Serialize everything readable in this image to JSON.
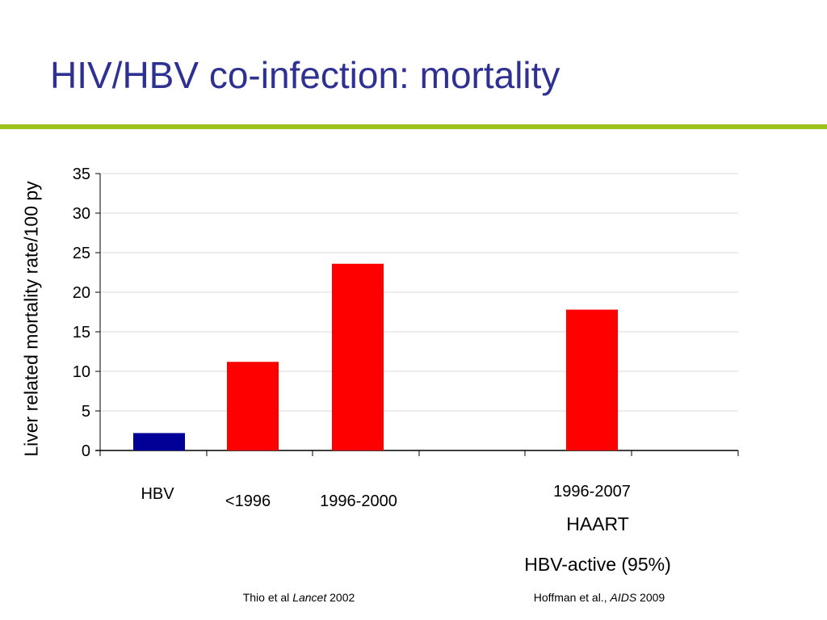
{
  "slide": {
    "title": "HIV/HBV co-infection: mortality",
    "rule_color": "#9bc31c"
  },
  "chart_data": {
    "type": "bar",
    "categories": [
      "HBV",
      "<1996",
      "1996-2000",
      "",
      "1996-2007"
    ],
    "values": [
      2.2,
      11.2,
      23.6,
      null,
      17.8
    ],
    "bar_colors": [
      "#000099",
      "#ff0000",
      "#ff0000",
      null,
      "#ff0000"
    ],
    "ylabel": "Liver related mortality rate/100 py",
    "ylim": [
      0,
      35
    ],
    "yticks": [
      "0",
      "5",
      "10",
      "15",
      "20",
      "25",
      "30",
      "35"
    ],
    "grid": true
  },
  "annotations": {
    "haart": "HAART",
    "hbv_active": "HBV-active (95%)"
  },
  "citations": {
    "left": {
      "author": "Thio et al ",
      "journal": "Lancet",
      "year": " 2002"
    },
    "right": {
      "author": "Hoffman et al., ",
      "journal": "AIDS",
      "year": " 2009"
    }
  }
}
